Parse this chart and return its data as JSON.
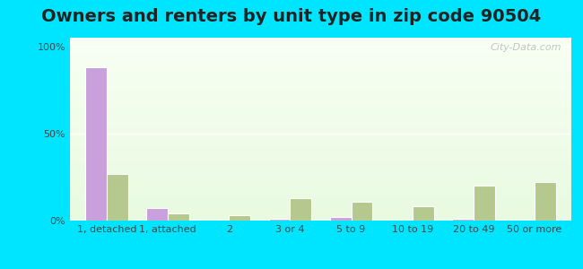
{
  "title": "Owners and renters by unit type in zip code 90504",
  "categories": [
    "1, detached",
    "1, attached",
    "2",
    "3 or 4",
    "5 to 9",
    "10 to 19",
    "20 to 49",
    "50 or more"
  ],
  "owner_values": [
    88,
    7,
    0,
    1,
    2,
    0,
    1,
    0
  ],
  "renter_values": [
    27,
    4,
    3,
    13,
    11,
    8,
    20,
    22
  ],
  "owner_color": "#c9a0dc",
  "renter_color": "#b5c98e",
  "bar_edge_color": "#ffffff",
  "background_top": "#e8f5e0",
  "background_bottom": "#f5ffe8",
  "outer_bg": "#00e5ff",
  "yticks": [
    0,
    50,
    100
  ],
  "ytick_labels": [
    "0%",
    "50%",
    "100%"
  ],
  "ylim": [
    0,
    105
  ],
  "title_fontsize": 14,
  "watermark": "City-Data.com"
}
